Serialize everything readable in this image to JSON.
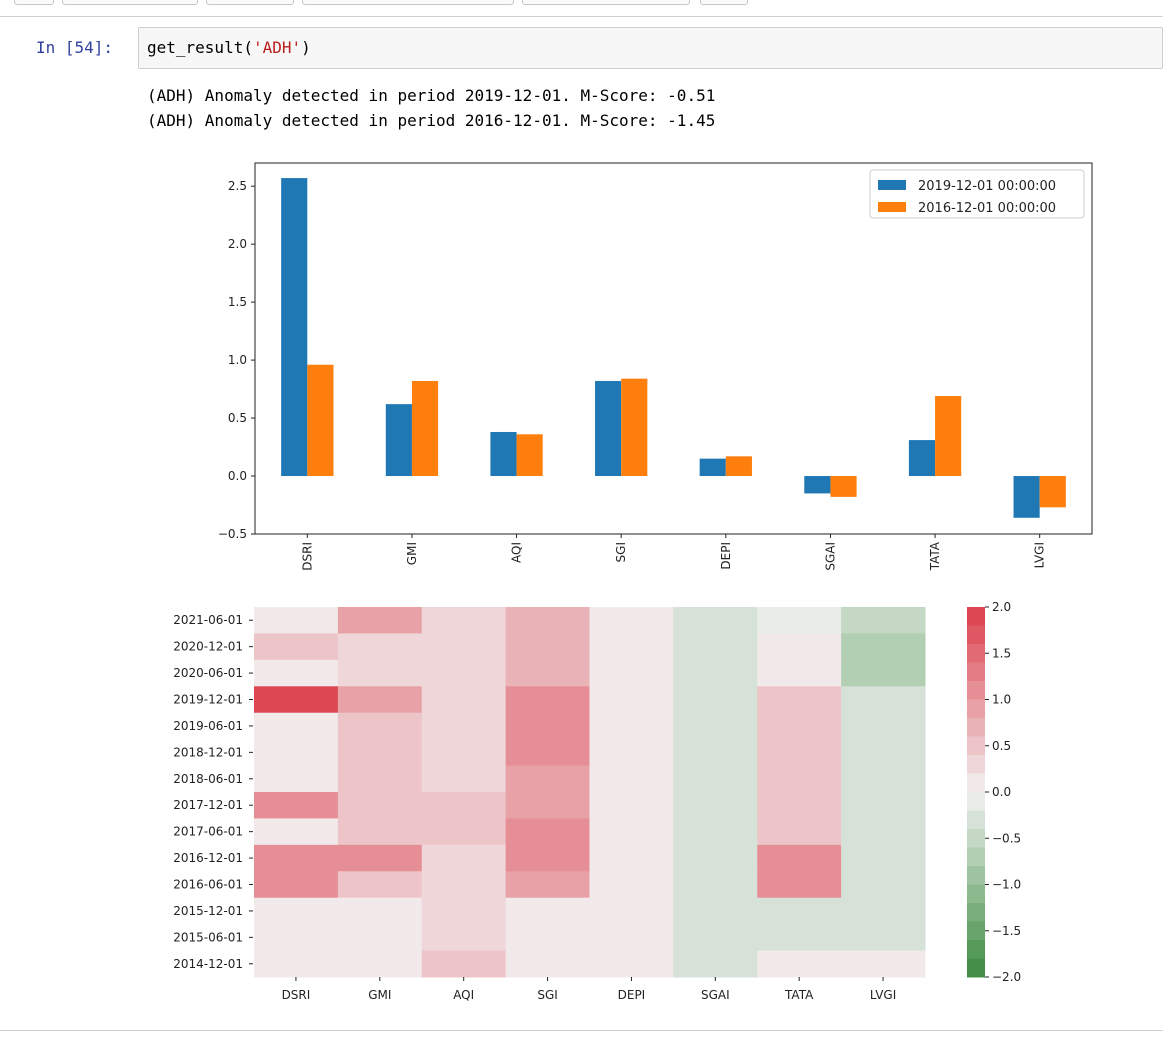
{
  "cell": {
    "prompt": "In [54]:",
    "code_fn": "get_result(",
    "code_arg": "'ADH'",
    "code_close": ")"
  },
  "output_lines": [
    "(ADH) Anomaly detected in period 2019-12-01. M-Score: -0.51",
    "(ADH) Anomaly detected in period 2016-12-01. M-Score: -1.45"
  ],
  "chart_data": [
    {
      "type": "bar",
      "categories": [
        "DSRI",
        "GMI",
        "AQI",
        "SGI",
        "DEPI",
        "SGAI",
        "TATA",
        "LVGI"
      ],
      "series": [
        {
          "name": "2019-12-01 00:00:00",
          "color": "#1f77b4",
          "values": [
            2.57,
            0.62,
            0.38,
            0.82,
            0.15,
            -0.15,
            0.31,
            -0.36
          ]
        },
        {
          "name": "2016-12-01 00:00:00",
          "color": "#ff7f0e",
          "values": [
            0.96,
            0.82,
            0.36,
            0.84,
            0.17,
            -0.18,
            0.69,
            -0.27
          ]
        }
      ],
      "ylim": [
        -0.5,
        2.7
      ],
      "yticks": [
        -0.5,
        0.0,
        0.5,
        1.0,
        1.5,
        2.0,
        2.5
      ],
      "ytick_labels": [
        "−0.5",
        "0.0",
        "0.5",
        "1.0",
        "1.5",
        "2.0",
        "2.5"
      ],
      "legend_position": "top-right",
      "xlabel": "",
      "ylabel": "",
      "x_tick_rotation": "vertical"
    },
    {
      "type": "heatmap",
      "columns": [
        "DSRI",
        "GMI",
        "AQI",
        "SGI",
        "DEPI",
        "SGAI",
        "TATA",
        "LVGI"
      ],
      "rows": [
        "2021-06-01",
        "2020-12-01",
        "2020-06-01",
        "2019-12-01",
        "2019-06-01",
        "2018-12-01",
        "2018-06-01",
        "2017-12-01",
        "2017-06-01",
        "2016-12-01",
        "2016-06-01",
        "2015-12-01",
        "2015-06-01",
        "2014-12-01"
      ],
      "values": [
        [
          0.1,
          0.85,
          0.3,
          0.65,
          0.1,
          -0.25,
          -0.2,
          -0.45
        ],
        [
          0.5,
          0.3,
          0.3,
          0.65,
          0.1,
          -0.25,
          0.1,
          -0.7
        ],
        [
          0.1,
          0.3,
          0.3,
          0.65,
          0.1,
          -0.25,
          0.1,
          -0.7
        ],
        [
          2.0,
          0.8,
          0.3,
          1.0,
          0.1,
          -0.25,
          0.4,
          -0.35
        ],
        [
          0.1,
          0.5,
          0.3,
          1.0,
          0.1,
          -0.25,
          0.4,
          -0.35
        ],
        [
          0.1,
          0.5,
          0.3,
          1.0,
          0.1,
          -0.25,
          0.4,
          -0.35
        ],
        [
          0.1,
          0.5,
          0.3,
          0.8,
          0.1,
          -0.25,
          0.4,
          -0.35
        ],
        [
          1.0,
          0.5,
          0.5,
          0.8,
          0.1,
          -0.25,
          0.4,
          -0.35
        ],
        [
          0.1,
          0.5,
          0.5,
          1.0,
          0.1,
          -0.25,
          0.4,
          -0.35
        ],
        [
          1.0,
          1.0,
          0.3,
          1.0,
          0.1,
          -0.25,
          1.0,
          -0.35
        ],
        [
          1.0,
          0.5,
          0.3,
          0.8,
          0.1,
          -0.25,
          1.0,
          -0.35
        ],
        [
          0.1,
          0.1,
          0.3,
          0.1,
          0.1,
          -0.25,
          -0.35,
          -0.35
        ],
        [
          0.1,
          0.1,
          0.3,
          0.1,
          0.1,
          -0.25,
          -0.35,
          -0.35
        ],
        [
          0.1,
          0.1,
          0.5,
          0.1,
          0.1,
          -0.25,
          0.1,
          0.1
        ]
      ],
      "vmin": -2.0,
      "vmax": 2.0,
      "colorbar_ticks": [
        2.0,
        1.5,
        1.0,
        0.5,
        0.0,
        -0.5,
        -1.0,
        -1.5,
        -2.0
      ],
      "colorbar_labels": [
        "2.0",
        "1.5",
        "1.0",
        "0.5",
        "0.0",
        "−0.5",
        "−1.0",
        "−1.5",
        "−2.0"
      ],
      "colormap": "diverging green (negative) to red (positive)",
      "colors": {
        "positive": "#dc3d4b",
        "negative": "#3a8a3e",
        "center": "#f2f2f2"
      }
    }
  ]
}
